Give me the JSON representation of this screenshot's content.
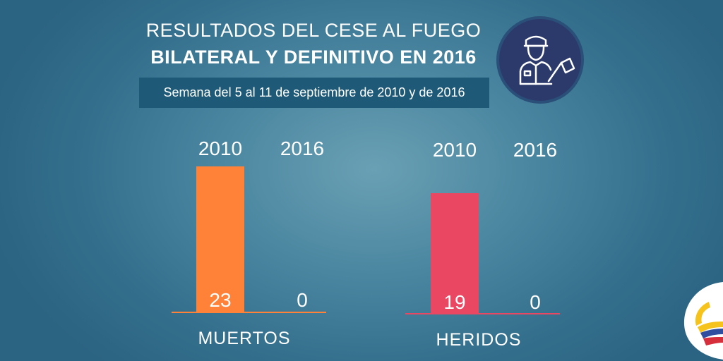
{
  "header": {
    "title_line1": "RESULTADOS DEL CESE AL FUEGO",
    "title_line2": "BILATERAL Y DEFINITIVO EN 2016",
    "subtitle": "Semana del 5 al 11 de septiembre de 2010 y de 2016"
  },
  "badge": {
    "icon": "soldier-with-flag-icon"
  },
  "logo": {
    "icon": "colombia-ribbon-logo"
  },
  "colors": {
    "muertos": "#ff8238",
    "heridos": "#ea4762",
    "background": "#4a86a0"
  },
  "chart_data": [
    {
      "type": "bar",
      "title": "MUERTOS",
      "categories": [
        "2010",
        "2016"
      ],
      "values": [
        23,
        0
      ],
      "value_labels": [
        "23",
        "0"
      ],
      "color": "#ff8238"
    },
    {
      "type": "bar",
      "title": "HERIDOS",
      "categories": [
        "2010",
        "2016"
      ],
      "values": [
        19,
        0
      ],
      "value_labels": [
        "19",
        "0"
      ],
      "color": "#ea4762"
    }
  ]
}
